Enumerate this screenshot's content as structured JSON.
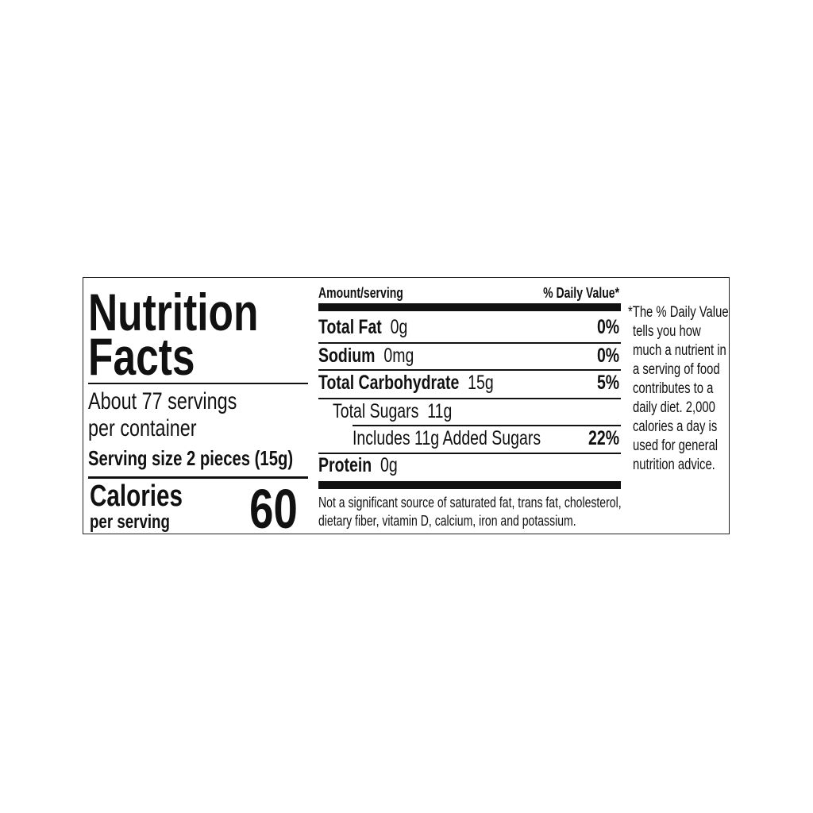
{
  "title_line1": "Nutrition",
  "title_line2": "Facts",
  "servings_line1": "About 77 servings",
  "servings_line2": "per container",
  "serving_size": "Serving size 2 pieces (15g)",
  "calories_label": "Calories",
  "calories_sub": "per serving",
  "calories_value": "60",
  "header_amount": "Amount/serving",
  "header_dv": "% Daily Value*",
  "rows": [
    {
      "name": "Total Fat",
      "amount": "0g",
      "dv": "0%"
    },
    {
      "name": "Sodium",
      "amount": "0mg",
      "dv": "0%"
    },
    {
      "name": "Total Carbohydrate",
      "amount": "15g",
      "dv": "5%"
    },
    {
      "name": "Total Sugars",
      "amount": "11g",
      "dv": ""
    },
    {
      "name": "Includes 11g Added Sugars",
      "amount": "",
      "dv": "22%"
    },
    {
      "name": "Protein",
      "amount": "0g",
      "dv": ""
    }
  ],
  "footer_line1": "Not a significant source of saturated fat, trans fat, cholesterol,",
  "footer_line2": "dietary fiber, vitamin D, calcium, iron and potassium.",
  "note_lines": [
    "*The % Daily Value",
    "tells you how",
    "much a nutrient in",
    "a serving of food",
    "contributes to a",
    "daily diet. 2,000",
    "calories a day is",
    "used for general",
    "nutrition advice."
  ]
}
